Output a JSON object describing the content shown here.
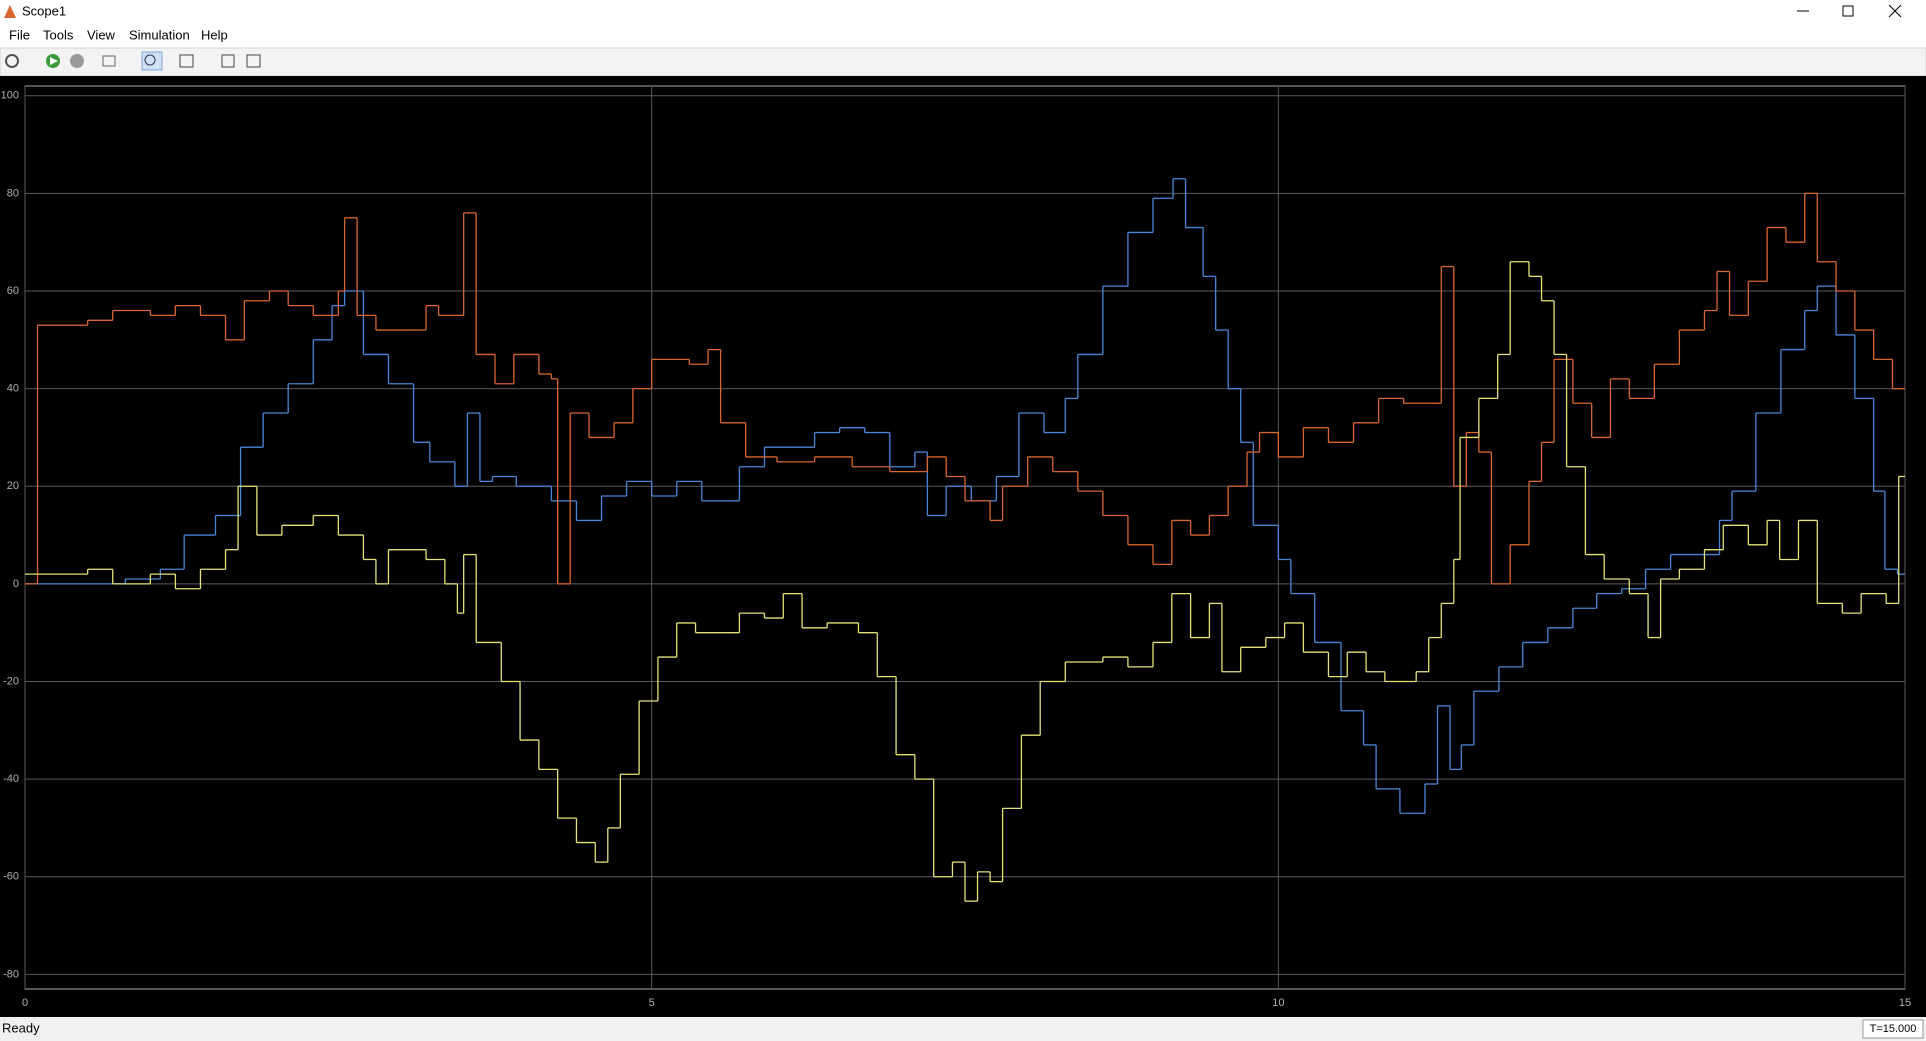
{
  "window": {
    "title": "Scope1",
    "menu": [
      "File",
      "Tools",
      "View",
      "Simulation",
      "Help"
    ],
    "status": "Ready",
    "time": "T=15.000"
  },
  "chart_data": {
    "type": "line",
    "step": true,
    "grid": true,
    "xlim": [
      0,
      15
    ],
    "xticks": [
      0,
      5,
      10,
      15
    ],
    "ylim": [
      -83,
      102
    ],
    "yticks": [
      -80,
      -60,
      -40,
      -20,
      0,
      20,
      40,
      60,
      80,
      100
    ],
    "series": [
      {
        "color": "#4a86d8",
        "x": [
          0,
          0.8,
          1.08,
          1.27,
          1.52,
          1.72,
          1.9,
          2.1,
          2.3,
          2.45,
          2.55,
          2.7,
          2.9,
          3.1,
          3.23,
          3.43,
          3.53,
          3.63,
          3.73,
          3.92,
          4.2,
          4.4,
          4.6,
          4.8,
          5.0,
          5.2,
          5.4,
          5.6,
          5.7,
          5.9,
          6.1,
          6.3,
          6.5,
          6.7,
          6.9,
          7.1,
          7.2,
          7.35,
          7.55,
          7.75,
          7.93,
          8.13,
          8.3,
          8.4,
          8.6,
          8.8,
          9.0,
          9.16,
          9.26,
          9.4,
          9.5,
          9.6,
          9.7,
          9.8,
          10.0,
          10.1,
          10.29,
          10.5,
          10.68,
          10.78,
          10.97,
          11.17,
          11.27,
          11.37,
          11.46,
          11.56,
          11.76,
          11.95,
          12.15,
          12.35,
          12.54,
          12.74,
          12.93,
          13.13,
          13.33,
          13.52,
          13.62,
          13.81,
          14.01,
          14.2,
          14.3,
          14.45,
          14.6,
          14.75,
          14.84,
          14.94
        ],
        "values": [
          0,
          1,
          3,
          10,
          14,
          28,
          35,
          41,
          50,
          57,
          60,
          47,
          41,
          29,
          25,
          20,
          35,
          21,
          22,
          20,
          17,
          13,
          18,
          21,
          18,
          21,
          17,
          17,
          24,
          28,
          28,
          31,
          32,
          31,
          24,
          27,
          14,
          20,
          17,
          22,
          35,
          31,
          38,
          47,
          61,
          72,
          79,
          83,
          73,
          63,
          52,
          40,
          29,
          12,
          5,
          -2,
          -12,
          -26,
          -33,
          -42,
          -47,
          -41,
          -25,
          -38,
          -33,
          -22,
          -17,
          -12,
          -9,
          -5,
          -2,
          -1,
          3,
          6,
          6,
          13,
          19,
          35,
          48,
          56,
          61,
          51,
          38,
          19,
          3,
          2
        ]
      },
      {
        "color": "#d9652f",
        "x": [
          0,
          0.1,
          0.5,
          0.7,
          1.0,
          1.2,
          1.4,
          1.6,
          1.75,
          1.95,
          2.1,
          2.3,
          2.5,
          2.55,
          2.65,
          2.8,
          3.1,
          3.2,
          3.3,
          3.5,
          3.6,
          3.75,
          3.9,
          4.1,
          4.2,
          4.25,
          4.35,
          4.5,
          4.7,
          4.85,
          5.0,
          5.3,
          5.45,
          5.55,
          5.75,
          6.0,
          6.3,
          6.6,
          6.9,
          7.2,
          7.35,
          7.5,
          7.7,
          7.8,
          8.0,
          8.2,
          8.4,
          8.6,
          8.8,
          9.0,
          9.15,
          9.3,
          9.45,
          9.6,
          9.75,
          9.85,
          10.0,
          10.2,
          10.4,
          10.6,
          10.8,
          11.0,
          11.2,
          11.3,
          11.4,
          11.5,
          11.6,
          11.7,
          11.85,
          12.0,
          12.1,
          12.2,
          12.35,
          12.5,
          12.65,
          12.8,
          13.0,
          13.2,
          13.4,
          13.5,
          13.6,
          13.75,
          13.9,
          14.05,
          14.2,
          14.3,
          14.45,
          14.6,
          14.75,
          14.9
        ],
        "values": [
          0,
          53,
          54,
          56,
          55,
          57,
          55,
          50,
          58,
          60,
          57,
          55,
          60,
          75,
          55,
          52,
          52,
          57,
          55,
          76,
          47,
          41,
          47,
          43,
          42,
          0,
          35,
          30,
          33,
          40,
          46,
          45,
          48,
          33,
          26,
          25,
          26,
          24,
          23,
          26,
          22,
          17,
          13,
          20,
          26,
          23,
          19,
          14,
          8,
          4,
          13,
          10,
          14,
          20,
          27,
          31,
          26,
          32,
          29,
          33,
          38,
          37,
          37,
          65,
          20,
          31,
          27,
          0,
          8,
          21,
          29,
          46,
          37,
          30,
          42,
          38,
          45,
          52,
          56,
          64,
          55,
          62,
          73,
          70,
          80,
          66,
          60,
          52,
          46,
          40
        ]
      },
      {
        "color": "#e3e37a",
        "x": [
          0,
          0.5,
          0.7,
          1.0,
          1.2,
          1.4,
          1.6,
          1.7,
          1.85,
          2.05,
          2.3,
          2.5,
          2.7,
          2.8,
          2.9,
          3.2,
          3.35,
          3.45,
          3.5,
          3.6,
          3.8,
          3.95,
          4.1,
          4.25,
          4.4,
          4.55,
          4.65,
          4.75,
          4.9,
          5.05,
          5.2,
          5.35,
          5.55,
          5.7,
          5.9,
          6.05,
          6.2,
          6.4,
          6.65,
          6.8,
          6.95,
          7.1,
          7.25,
          7.4,
          7.5,
          7.6,
          7.7,
          7.8,
          7.95,
          8.1,
          8.3,
          8.6,
          8.8,
          9.0,
          9.15,
          9.3,
          9.45,
          9.55,
          9.7,
          9.9,
          10.05,
          10.2,
          10.4,
          10.55,
          10.7,
          10.85,
          11.1,
          11.2,
          11.3,
          11.4,
          11.45,
          11.6,
          11.75,
          11.85,
          12.0,
          12.1,
          12.2,
          12.3,
          12.45,
          12.6,
          12.8,
          12.95,
          13.05,
          13.2,
          13.4,
          13.55,
          13.75,
          13.9,
          14.0,
          14.15,
          14.3,
          14.5,
          14.65,
          14.85,
          14.95
        ],
        "values": [
          2,
          3,
          0,
          2,
          -1,
          3,
          7,
          20,
          10,
          12,
          14,
          10,
          5,
          0,
          7,
          5,
          0,
          -6,
          6,
          -12,
          -20,
          -32,
          -38,
          -48,
          -53,
          -57,
          -50,
          -39,
          -24,
          -15,
          -8,
          -10,
          -10,
          -6,
          -7,
          -2,
          -9,
          -8,
          -10,
          -19,
          -35,
          -40,
          -60,
          -57,
          -65,
          -59,
          -61,
          -46,
          -31,
          -20,
          -16,
          -15,
          -17,
          -12,
          -2,
          -11,
          -4,
          -18,
          -13,
          -11,
          -8,
          -14,
          -19,
          -14,
          -18,
          -20,
          -18,
          -11,
          -4,
          5,
          30,
          38,
          47,
          66,
          63,
          58,
          47,
          24,
          6,
          1,
          -2,
          -11,
          1,
          3,
          7,
          12,
          8,
          13,
          5,
          13,
          -4,
          -6,
          -2,
          -4,
          22
        ]
      }
    ]
  }
}
